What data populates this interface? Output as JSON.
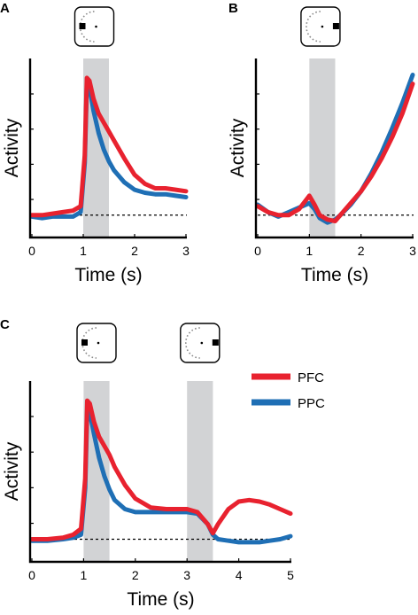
{
  "colors": {
    "pfc": "#e8222f",
    "ppc": "#1f6fb5",
    "shade": "#d2d3d5"
  },
  "legend": [
    {
      "label": "PFC",
      "color": "#e8222f"
    },
    {
      "label": "PPC",
      "color": "#1f6fb5"
    }
  ],
  "chart_data": [
    {
      "panel": "A",
      "type": "line",
      "xlabel": "Time (s)",
      "ylabel": "Activity",
      "xlim": [
        0,
        3
      ],
      "ylim": [
        -0.15,
        1.05
      ],
      "xticks": [
        "0",
        "1",
        "2",
        "3"
      ],
      "baseline": 0,
      "shaded": [
        [
          1.0,
          1.5
        ]
      ],
      "stimulus_icons": [
        {
          "x": 1.0,
          "square": "left"
        }
      ],
      "series": [
        {
          "name": "PFC",
          "x": [
            0,
            0.2,
            0.4,
            0.6,
            0.8,
            0.95,
            1.03,
            1.07,
            1.12,
            1.2,
            1.3,
            1.4,
            1.5,
            1.6,
            1.8,
            2.0,
            2.2,
            2.4,
            2.6,
            2.8,
            3.0
          ],
          "y": [
            0.0,
            0.0,
            0.01,
            0.02,
            0.03,
            0.06,
            0.4,
            0.92,
            0.9,
            0.78,
            0.68,
            0.62,
            0.56,
            0.5,
            0.38,
            0.27,
            0.21,
            0.18,
            0.18,
            0.17,
            0.16
          ]
        },
        {
          "name": "PPC",
          "x": [
            0,
            0.2,
            0.4,
            0.6,
            0.8,
            0.95,
            1.03,
            1.07,
            1.12,
            1.2,
            1.3,
            1.4,
            1.5,
            1.6,
            1.8,
            2.0,
            2.2,
            2.4,
            2.6,
            2.8,
            3.0
          ],
          "y": [
            -0.01,
            -0.02,
            -0.01,
            -0.01,
            -0.01,
            0.02,
            0.35,
            0.88,
            0.86,
            0.7,
            0.55,
            0.44,
            0.36,
            0.3,
            0.22,
            0.17,
            0.15,
            0.14,
            0.14,
            0.13,
            0.12
          ]
        }
      ]
    },
    {
      "panel": "B",
      "type": "line",
      "xlabel": "Time (s)",
      "ylabel": "Activity",
      "xlim": [
        0,
        3
      ],
      "ylim": [
        -0.15,
        1.05
      ],
      "xticks": [
        "0",
        "1",
        "2",
        "3"
      ],
      "baseline": 0,
      "shaded": [
        [
          1.0,
          1.5
        ]
      ],
      "stimulus_icons": [
        {
          "x": 1.0,
          "square": "right"
        }
      ],
      "series": [
        {
          "name": "PFC",
          "x": [
            0,
            0.2,
            0.4,
            0.6,
            0.8,
            1.0,
            1.1,
            1.2,
            1.35,
            1.5,
            1.6,
            1.8,
            2.0,
            2.2,
            2.4,
            2.6,
            2.8,
            3.0
          ],
          "y": [
            0.06,
            0.02,
            0.0,
            0.0,
            0.04,
            0.13,
            0.07,
            0.0,
            -0.03,
            -0.04,
            0.0,
            0.08,
            0.16,
            0.26,
            0.38,
            0.52,
            0.68,
            0.88
          ]
        },
        {
          "name": "PPC",
          "x": [
            0,
            0.2,
            0.4,
            0.6,
            0.8,
            1.0,
            1.1,
            1.2,
            1.35,
            1.5,
            1.6,
            1.8,
            2.0,
            2.2,
            2.4,
            2.6,
            2.8,
            3.0
          ],
          "y": [
            0.07,
            0.02,
            -0.01,
            0.02,
            0.05,
            0.08,
            0.04,
            -0.02,
            -0.05,
            -0.03,
            0.0,
            0.07,
            0.16,
            0.28,
            0.42,
            0.58,
            0.75,
            0.94
          ]
        }
      ]
    },
    {
      "panel": "C",
      "type": "line",
      "xlabel": "Time (s)",
      "ylabel": "Activity",
      "xlim": [
        0,
        5
      ],
      "ylim": [
        -0.15,
        1.05
      ],
      "xticks": [
        "0",
        "1",
        "2",
        "3",
        "4",
        "5"
      ],
      "baseline": 0,
      "shaded": [
        [
          1.0,
          1.5
        ],
        [
          3.0,
          3.5
        ]
      ],
      "stimulus_icons": [
        {
          "x": 1.0,
          "square": "left"
        },
        {
          "x": 3.0,
          "square": "right"
        }
      ],
      "series": [
        {
          "name": "PFC",
          "x": [
            0,
            0.3,
            0.6,
            0.8,
            0.95,
            1.03,
            1.07,
            1.12,
            1.2,
            1.3,
            1.4,
            1.5,
            1.6,
            1.8,
            2.0,
            2.3,
            2.6,
            3.0,
            3.2,
            3.4,
            3.5,
            3.6,
            3.8,
            4.0,
            4.2,
            4.4,
            4.6,
            4.8,
            5.0
          ],
          "y": [
            0.0,
            0.0,
            0.01,
            0.03,
            0.07,
            0.4,
            0.92,
            0.9,
            0.78,
            0.68,
            0.62,
            0.56,
            0.48,
            0.36,
            0.27,
            0.21,
            0.2,
            0.2,
            0.18,
            0.1,
            0.04,
            0.1,
            0.2,
            0.25,
            0.26,
            0.25,
            0.23,
            0.2,
            0.17
          ]
        },
        {
          "name": "PPC",
          "x": [
            0,
            0.3,
            0.6,
            0.8,
            0.95,
            1.03,
            1.07,
            1.12,
            1.2,
            1.3,
            1.4,
            1.5,
            1.6,
            1.8,
            2.0,
            2.3,
            2.6,
            3.0,
            3.2,
            3.4,
            3.5,
            3.6,
            3.8,
            4.0,
            4.2,
            4.4,
            4.6,
            4.8,
            5.0
          ],
          "y": [
            -0.01,
            -0.01,
            0.0,
            0.01,
            0.03,
            0.34,
            0.86,
            0.84,
            0.7,
            0.54,
            0.42,
            0.33,
            0.26,
            0.2,
            0.18,
            0.18,
            0.18,
            0.18,
            0.17,
            0.1,
            0.03,
            0.0,
            -0.01,
            -0.02,
            -0.02,
            -0.02,
            -0.01,
            0.0,
            0.02
          ]
        }
      ]
    }
  ]
}
